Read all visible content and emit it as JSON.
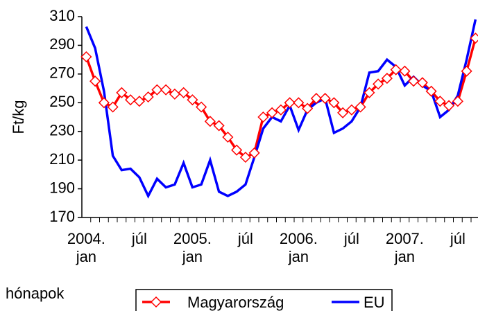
{
  "chart_data": {
    "type": "line",
    "y_label": "Ft/kg",
    "x_label": "hónapok",
    "categories": [
      "2004. jan",
      null,
      null,
      null,
      null,
      null,
      "júl",
      null,
      null,
      null,
      null,
      null,
      "2005. jan",
      null,
      null,
      null,
      null,
      null,
      "júl",
      null,
      null,
      null,
      null,
      null,
      "2006. jan",
      null,
      null,
      null,
      null,
      null,
      "júl",
      null,
      null,
      null,
      null,
      null,
      "2007. jan",
      null,
      null,
      null,
      null,
      null,
      "júl",
      null,
      null
    ],
    "series": [
      {
        "name": "Magyarország",
        "color": "#ff0000",
        "marker": "diamond",
        "values": [
          282,
          265,
          250,
          247,
          257,
          252,
          251,
          254,
          259,
          259,
          256,
          257,
          252,
          247,
          237,
          234,
          226,
          217,
          212,
          215,
          240,
          243,
          245,
          250,
          250,
          246,
          253,
          253,
          250,
          243,
          245,
          247,
          257,
          263,
          267,
          273,
          272,
          265,
          264,
          258,
          251,
          248,
          251,
          272,
          295
        ]
      },
      {
        "name": "EU",
        "color": "#0000ff",
        "values": [
          303,
          288,
          258,
          213,
          203,
          204,
          198,
          185,
          197,
          191,
          193,
          208,
          191,
          193,
          210,
          188,
          185,
          188,
          193,
          212,
          232,
          240,
          237,
          248,
          231,
          245,
          250,
          253,
          229,
          232,
          237,
          247,
          271,
          272,
          280,
          275,
          262,
          268,
          262,
          258,
          240,
          245,
          255,
          280,
          308
        ]
      }
    ],
    "ylim": [
      170,
      310
    ],
    "yticks": [
      170,
      190,
      210,
      230,
      250,
      270,
      290,
      310
    ],
    "grid": false
  }
}
